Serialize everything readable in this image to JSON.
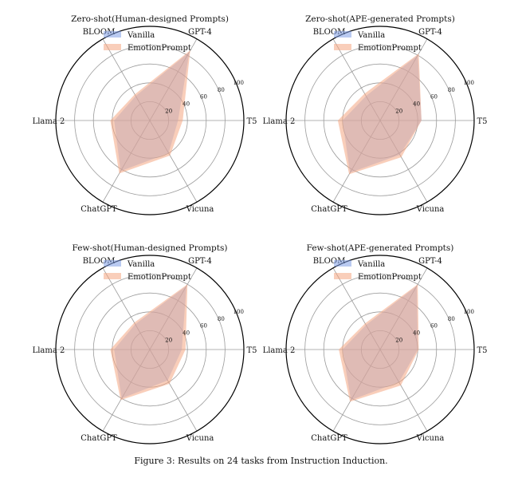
{
  "caption": "Figure 3: Results on 24 tasks from Instruction Induction.",
  "colors": {
    "vanilla": "#7f9fe6",
    "emotion": "#f4a582",
    "grid": "#9a9a9a"
  },
  "chart_data": [
    {
      "type": "radar",
      "title": "Zero-shot(Human-designed Prompts)",
      "axes": [
        "GPT-4",
        "T5",
        "Vicuna",
        "ChatGPT",
        "Llama 2",
        "BLOOM"
      ],
      "radial_ticks": [
        "20",
        "40",
        "60",
        "80",
        "100"
      ],
      "rlim": [
        0,
        100
      ],
      "legend": "top-left",
      "series": [
        {
          "name": "Vanilla",
          "values": [
            84,
            30,
            40,
            62,
            38,
            30
          ]
        },
        {
          "name": "EmotionPrompt",
          "values": [
            86,
            35,
            43,
            65,
            42,
            32
          ]
        }
      ]
    },
    {
      "type": "radar",
      "title": "Zero-shot(APE-generated Prompts)",
      "axes": [
        "GPT-4",
        "T5",
        "Vicuna",
        "ChatGPT",
        "Llama 2",
        "BLOOM"
      ],
      "radial_ticks": [
        "20",
        "40",
        "60",
        "80",
        "100"
      ],
      "rlim": [
        0,
        100
      ],
      "legend": "top-left",
      "series": [
        {
          "name": "Vanilla",
          "values": [
            80,
            44,
            42,
            64,
            40,
            30
          ]
        },
        {
          "name": "EmotionPrompt",
          "values": [
            82,
            44,
            45,
            66,
            45,
            33
          ]
        }
      ]
    },
    {
      "type": "radar",
      "title": "Few-shot(Human-designed Prompts)",
      "axes": [
        "GPT-4",
        "T5",
        "Vicuna",
        "ChatGPT",
        "Llama 2",
        "BLOOM"
      ],
      "radial_ticks": [
        "20",
        "40",
        "60",
        "80",
        "100"
      ],
      "rlim": [
        0,
        100
      ],
      "legend": "top-left",
      "series": [
        {
          "name": "Vanilla",
          "values": [
            78,
            34,
            38,
            60,
            38,
            31
          ]
        },
        {
          "name": "EmotionPrompt",
          "values": [
            80,
            38,
            42,
            62,
            42,
            33
          ]
        }
      ]
    },
    {
      "type": "radar",
      "title": "Few-shot(APE-generated Prompts)",
      "axes": [
        "GPT-4",
        "T5",
        "Vicuna",
        "ChatGPT",
        "Llama 2",
        "BLOOM"
      ],
      "radial_ticks": [
        "20",
        "40",
        "60",
        "80",
        "100"
      ],
      "rlim": [
        0,
        100
      ],
      "legend": "top-left",
      "series": [
        {
          "name": "Vanilla",
          "values": [
            78,
            40,
            40,
            62,
            40,
            30
          ]
        },
        {
          "name": "EmotionPrompt",
          "values": [
            80,
            41,
            44,
            64,
            44,
            32
          ]
        }
      ]
    }
  ]
}
